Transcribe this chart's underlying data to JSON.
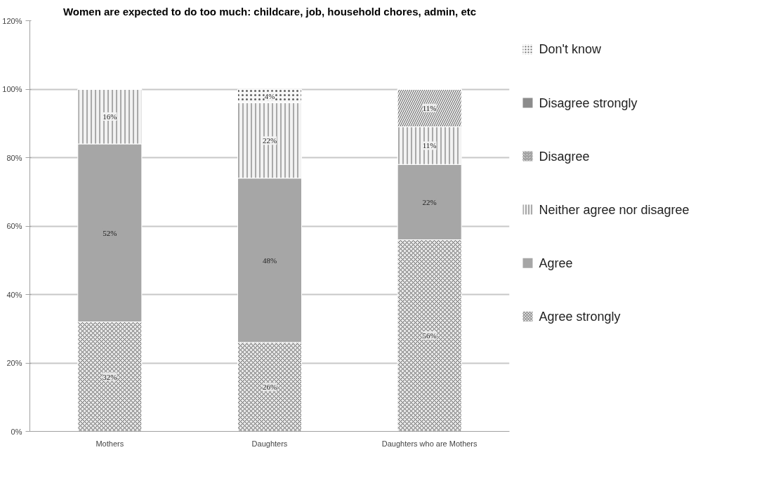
{
  "chart_data": {
    "type": "bar",
    "title": "Women are expected to do too much: childcare, job, household chores, admin, etc",
    "categories": [
      "Mothers",
      "Daughters",
      "Daughters who are Mothers"
    ],
    "stacked": true,
    "series": [
      {
        "name": "Agree strongly",
        "color": "#e6e6e6",
        "values": [
          32,
          26,
          56
        ],
        "value_labels": [
          "32%",
          "26%",
          "56%"
        ]
      },
      {
        "name": "Agree",
        "color": "#a6a6a6",
        "values": [
          52,
          48,
          22
        ],
        "value_labels": [
          "52%",
          "48%",
          "22%"
        ]
      },
      {
        "name": "Neither agree nor disagree",
        "color": "#f2f2f2",
        "values": [
          16,
          22,
          11
        ],
        "value_labels": [
          "16%",
          "22%",
          "11%"
        ]
      },
      {
        "name": "Disagree",
        "color": "#ebebeb",
        "values": [
          0,
          0,
          11
        ],
        "value_labels": [
          null,
          null,
          "11%"
        ]
      },
      {
        "name": "Disagree strongly",
        "color": "#8c8c8c",
        "values": [
          0,
          0,
          0
        ],
        "value_labels": [
          null,
          null,
          null
        ]
      },
      {
        "name": "Don't know",
        "color": "#f7f7f7",
        "values": [
          0,
          4,
          0
        ],
        "value_labels": [
          null,
          "4%",
          null
        ]
      }
    ],
    "ylim": [
      0,
      120
    ],
    "yticks": [
      {
        "value": 0,
        "label": "0%"
      },
      {
        "value": 20,
        "label": "20%"
      },
      {
        "value": 40,
        "label": "40%"
      },
      {
        "value": 60,
        "label": "60%"
      },
      {
        "value": 80,
        "label": "80%"
      },
      {
        "value": 100,
        "label": "100%"
      },
      {
        "value": 120,
        "label": "120%"
      }
    ],
    "grid": "y",
    "legend": "right"
  }
}
